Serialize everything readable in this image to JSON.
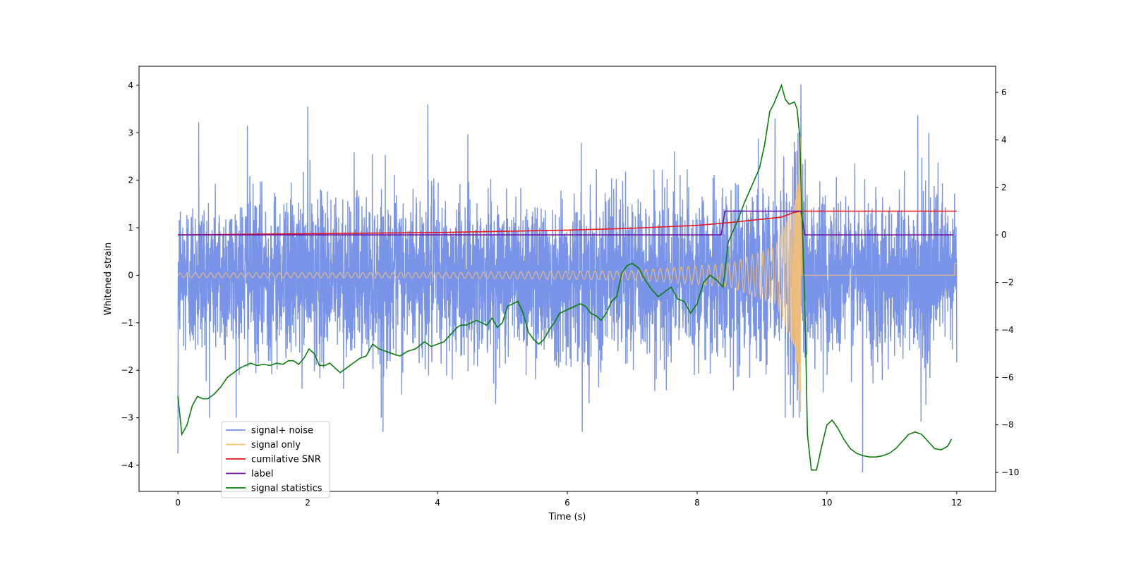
{
  "chart_data": {
    "type": "line",
    "title": "",
    "xlabel": "Time (s)",
    "ylabel": "Whitened strain",
    "y2label": "",
    "xlim": [
      -0.6,
      12.6
    ],
    "ylim": [
      -4.55,
      4.4
    ],
    "y2lim": [
      -10.8,
      7.1
    ],
    "xticks": [
      "0",
      "2",
      "4",
      "6",
      "8",
      "10",
      "12"
    ],
    "yticks": [
      "−4",
      "−3",
      "−2",
      "−1",
      "0",
      "1",
      "2",
      "3",
      "4"
    ],
    "y2ticks": [
      "−10",
      "−8",
      "−6",
      "−4",
      "−2",
      "0",
      "2",
      "4",
      "6"
    ],
    "legend_position": "lower-left",
    "series": [
      {
        "name": "signal+ noise",
        "color": "#7893e8",
        "axis": "left",
        "description": "whitened noise plus injected chirp, sampled densely from 0 to 12 s",
        "x_range": [
          0,
          12
        ],
        "typical_range": [
          -2.5,
          2.5
        ],
        "peak_values": [
          {
            "x": 0.0,
            "y": -3.75
          },
          {
            "x": 0.32,
            "y": 3.22
          },
          {
            "x": 1.07,
            "y": 3.15
          },
          {
            "x": 2.0,
            "y": 3.55
          },
          {
            "x": 3.85,
            "y": 3.6
          },
          {
            "x": 3.16,
            "y": -3.3
          },
          {
            "x": 6.23,
            "y": -3.3
          },
          {
            "x": 9.2,
            "y": 3.3
          },
          {
            "x": 9.6,
            "y": 4.02
          },
          {
            "x": 10.55,
            "y": -4.15
          },
          {
            "x": 11.4,
            "y": 3.37
          },
          {
            "x": 11.45,
            "y": -3.08
          }
        ]
      },
      {
        "name": "signal only",
        "color": "#f9c272",
        "axis": "left",
        "description": "chirp oscillation whose amplitude and frequency grow until merger near 9.6 s, then zero",
        "merger_time": 9.6,
        "values": [
          {
            "x": 0.0,
            "amplitude": 0.05
          },
          {
            "x": 4.0,
            "amplitude": 0.06
          },
          {
            "x": 7.0,
            "amplitude": 0.1
          },
          {
            "x": 8.5,
            "amplitude": 0.25
          },
          {
            "x": 9.2,
            "amplitude": 0.6
          },
          {
            "x": 9.5,
            "amplitude": 1.5
          },
          {
            "x": 9.6,
            "amplitude": 3.1
          },
          {
            "x": 9.62,
            "amplitude": 0.0
          },
          {
            "x": 12.0,
            "amplitude": 0.2
          }
        ]
      },
      {
        "name": "cumilative SNR",
        "color": "#e8171c",
        "axis": "right",
        "x": [
          0,
          2,
          4,
          6,
          7,
          8,
          8.5,
          9.0,
          9.3,
          9.5,
          9.6,
          12
        ],
        "values": [
          0.0,
          0.05,
          0.1,
          0.2,
          0.28,
          0.4,
          0.52,
          0.66,
          0.75,
          0.95,
          1.0,
          1.0
        ]
      },
      {
        "name": "label",
        "color": "#6a0fa0",
        "axis": "right",
        "x": [
          0,
          8.37,
          8.43,
          9.6,
          9.66,
          11.95
        ],
        "values": [
          0,
          0,
          1,
          1,
          0,
          0
        ]
      },
      {
        "name": "signal statistics",
        "color": "#0a7d0a",
        "axis": "right",
        "x": [
          0,
          0.06,
          0.14,
          0.22,
          0.3,
          0.38,
          0.46,
          0.56,
          0.66,
          0.76,
          0.86,
          0.96,
          1.04,
          1.12,
          1.22,
          1.32,
          1.42,
          1.52,
          1.62,
          1.7,
          1.78,
          1.86,
          1.94,
          2.02,
          2.1,
          2.18,
          2.26,
          2.34,
          2.42,
          2.5,
          2.6,
          2.7,
          2.8,
          2.9,
          3.0,
          3.1,
          3.2,
          3.3,
          3.42,
          3.54,
          3.66,
          3.8,
          3.9,
          4.0,
          4.1,
          4.2,
          4.3,
          4.36,
          4.44,
          4.52,
          4.6,
          4.68,
          4.76,
          4.84,
          4.92,
          5.0,
          5.08,
          5.16,
          5.24,
          5.32,
          5.4,
          5.48,
          5.56,
          5.64,
          5.72,
          5.8,
          5.88,
          5.96,
          6.04,
          6.12,
          6.2,
          6.28,
          6.36,
          6.44,
          6.52,
          6.6,
          6.68,
          6.76,
          6.84,
          6.92,
          7.0,
          7.1,
          7.2,
          7.3,
          7.4,
          7.5,
          7.6,
          7.7,
          7.8,
          7.9,
          8.0,
          8.1,
          8.2,
          8.3,
          8.4,
          8.48,
          8.56,
          8.64,
          8.72,
          8.8,
          8.88,
          8.96,
          9.04,
          9.12,
          9.18,
          9.24,
          9.3,
          9.36,
          9.42,
          9.5,
          9.54,
          9.58,
          9.62,
          9.66,
          9.7,
          9.76,
          9.84,
          9.92,
          10.0,
          10.08,
          10.16,
          10.26,
          10.36,
          10.46,
          10.56,
          10.66,
          10.76,
          10.86,
          10.96,
          11.06,
          11.16,
          11.26,
          11.36,
          11.46,
          11.56,
          11.66,
          11.76,
          11.86,
          11.92
        ],
        "values": [
          -6.8,
          -8.4,
          -8.0,
          -7.2,
          -6.8,
          -6.9,
          -6.9,
          -6.7,
          -6.4,
          -6.0,
          -5.8,
          -5.6,
          -5.5,
          -5.4,
          -5.5,
          -5.45,
          -5.5,
          -5.4,
          -5.45,
          -5.3,
          -5.3,
          -5.45,
          -5.2,
          -4.8,
          -5.0,
          -5.5,
          -5.5,
          -5.4,
          -5.6,
          -5.8,
          -5.6,
          -5.4,
          -5.2,
          -5.1,
          -4.6,
          -4.8,
          -4.9,
          -5.0,
          -5.1,
          -4.9,
          -4.8,
          -4.5,
          -4.7,
          -4.6,
          -4.5,
          -4.2,
          -3.9,
          -3.8,
          -3.8,
          -3.7,
          -3.6,
          -3.7,
          -3.8,
          -3.5,
          -3.9,
          -3.7,
          -3.0,
          -2.9,
          -2.8,
          -3.3,
          -4.1,
          -4.4,
          -4.6,
          -4.4,
          -4.0,
          -3.7,
          -3.3,
          -3.2,
          -3.1,
          -3.0,
          -2.9,
          -3.0,
          -3.3,
          -3.4,
          -3.6,
          -3.3,
          -2.8,
          -2.6,
          -1.6,
          -1.3,
          -1.2,
          -1.4,
          -1.9,
          -2.3,
          -2.6,
          -2.4,
          -2.2,
          -2.7,
          -2.8,
          -3.3,
          -2.9,
          -2.0,
          -1.7,
          -1.9,
          -2.2,
          -0.3,
          0.2,
          0.7,
          1.3,
          1.8,
          2.3,
          2.8,
          3.8,
          5.2,
          5.5,
          5.9,
          6.3,
          5.7,
          5.5,
          5.6,
          5.3,
          4.2,
          0.4,
          -2.8,
          -8.4,
          -9.9,
          -9.9,
          -8.9,
          -8.0,
          -7.8,
          -8.1,
          -8.6,
          -9.0,
          -9.2,
          -9.3,
          -9.35,
          -9.35,
          -9.3,
          -9.2,
          -9.0,
          -8.7,
          -8.4,
          -8.3,
          -8.4,
          -8.7,
          -9.0,
          -9.05,
          -8.9,
          -8.6
        ]
      }
    ]
  }
}
